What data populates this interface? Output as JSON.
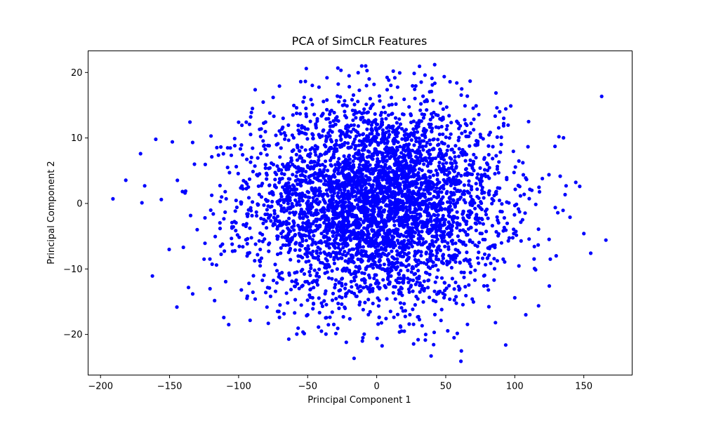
{
  "chart_data": {
    "type": "scatter",
    "title": "PCA of SimCLR Features",
    "xlabel": "Principal Component 1",
    "ylabel": "Principal Component 2",
    "xlim": [
      -209,
      185
    ],
    "ylim": [
      -26.2,
      23.3
    ],
    "x_ticks": [
      -200,
      -150,
      -100,
      -50,
      0,
      50,
      100,
      150
    ],
    "y_ticks": [
      -20,
      -10,
      0,
      10,
      20
    ],
    "x_tick_labels": [
      "−200",
      "−150",
      "−100",
      "−50",
      "0",
      "50",
      "100",
      "150"
    ],
    "y_tick_labels": [
      "−20",
      "−10",
      "0",
      "10",
      "20"
    ],
    "grid": false,
    "legend": "none",
    "marker_color": "#0000ff",
    "series": [
      {
        "points": [
          [
            -191,
            0.7
          ],
          [
            -171,
            7.6
          ],
          [
            -170,
            0.1
          ],
          [
            -168,
            2.7
          ],
          [
            -160,
            9.8
          ],
          [
            -156,
            0.6
          ],
          [
            -148,
            9.4
          ],
          [
            -140,
            -6.7
          ],
          [
            -132,
            6.0
          ],
          [
            -130,
            -4.0
          ],
          [
            -125,
            -8.5
          ],
          [
            -120,
            10.3
          ],
          [
            -116,
            -9.4
          ],
          [
            -108,
            5.5
          ],
          [
            -100,
            12.4
          ],
          [
            -98,
            -13.2
          ],
          [
            -90,
            14.5
          ],
          [
            -88,
            -14.6
          ],
          [
            -75,
            16.2
          ],
          [
            -70,
            -15.5
          ],
          [
            -55,
            18.6
          ],
          [
            -50,
            -17.0
          ],
          [
            -40,
            -19.5
          ],
          [
            -36,
            19.2
          ],
          [
            -22,
            -21.2
          ],
          [
            -20,
            19.5
          ],
          [
            -10,
            -20.5
          ],
          [
            -8,
            21.0
          ],
          [
            12,
            20.2
          ],
          [
            20,
            -19.5
          ],
          [
            30,
            -20.8
          ],
          [
            35,
            19.6
          ],
          [
            42,
            21.2
          ],
          [
            56,
            -20.5
          ],
          [
            61,
            -24.1
          ],
          [
            58,
            18.4
          ],
          [
            72,
            14.9
          ],
          [
            86,
            -18.2
          ],
          [
            92,
            13.0
          ],
          [
            110,
            12.5
          ],
          [
            108,
            -17.0
          ],
          [
            120,
            3.8
          ],
          [
            130,
            -8.0
          ],
          [
            132,
            10.2
          ],
          [
            140,
            -2.1
          ],
          [
            150,
            -4.6
          ],
          [
            155,
            -7.6
          ],
          [
            166,
            -5.6
          ],
          [
            125,
            -12.6
          ],
          [
            100,
            -14.4
          ]
        ]
      }
    ],
    "cloud": {
      "count": 4200,
      "center": [
        0,
        0
      ],
      "std": [
        45,
        7.5
      ],
      "extent_x": [
        -191,
        166
      ],
      "extent_y": [
        -24.1,
        21.2
      ]
    }
  }
}
